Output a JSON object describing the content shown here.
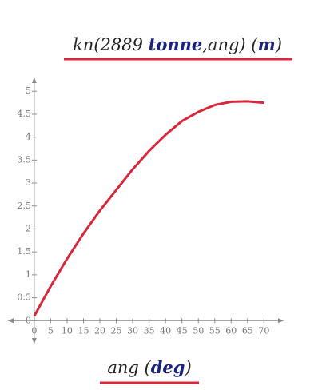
{
  "chart_data": {
    "type": "line",
    "y_label_parts": [
      {
        "text": "kn(2889 "
      },
      {
        "text": "tonne",
        "unit": true
      },
      {
        "text": ",ang)  ("
      },
      {
        "text": "m",
        "unit": true
      },
      {
        "text": ")"
      }
    ],
    "x_label_parts": [
      {
        "text": "ang  ("
      },
      {
        "text": "deg",
        "unit": true
      },
      {
        "text": ")"
      }
    ],
    "x": [
      0,
      5,
      10,
      15,
      20,
      25,
      30,
      35,
      40,
      45,
      50,
      55,
      60,
      65,
      70
    ],
    "series": [
      {
        "color": "#d9263a",
        "values": [
          0.1,
          0.75,
          1.35,
          1.9,
          2.4,
          2.85,
          3.3,
          3.7,
          4.05,
          4.35,
          4.55,
          4.7,
          4.77,
          4.78,
          4.75
        ]
      }
    ],
    "xlim": [
      -8,
      76
    ],
    "ylim": [
      -0.5,
      5.3
    ],
    "xticks": [
      0,
      5,
      10,
      15,
      20,
      25,
      30,
      35,
      40,
      45,
      50,
      55,
      60,
      65,
      70
    ],
    "yticks": [
      0,
      0.5,
      1,
      1.5,
      2,
      2.5,
      3,
      3.5,
      4,
      4.5,
      5
    ]
  }
}
